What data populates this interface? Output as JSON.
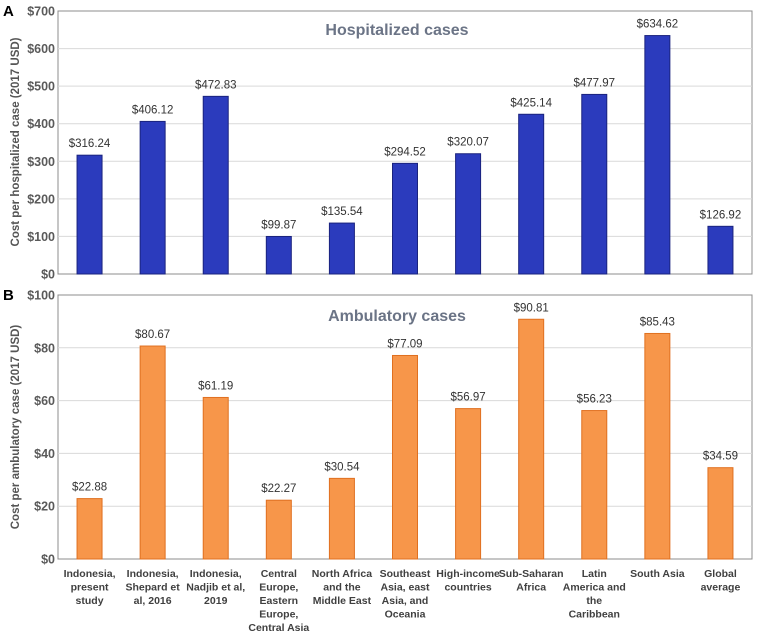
{
  "chart_data": [
    {
      "panel": "A",
      "type": "bar",
      "title": "Hospitalized cases",
      "ylabel": "Cost per hospitalized case (2017 USD)",
      "xlabel": "",
      "ylim": [
        0,
        700
      ],
      "yticks": [
        0,
        100,
        200,
        300,
        400,
        500,
        600,
        700
      ],
      "ytick_labels": [
        "$0",
        "$100",
        "$200",
        "$300",
        "$400",
        "$500",
        "$600",
        "$700"
      ],
      "categories": [
        "Indonesia, present study",
        "Indonesia, Shepard et al, 2016",
        "Indonesia, Nadjib et al, 2019",
        "Central Europe, Eastern Europe, Central Asia",
        "North Africa and the Middle East",
        "Southeast Asia, east Asia, and Oceania",
        "High-income countries",
        "Sub-Saharan Africa",
        "Latin America and the Caribbean",
        "South Asia",
        "Global average"
      ],
      "values": [
        316.24,
        406.12,
        472.83,
        99.87,
        135.54,
        294.52,
        320.07,
        425.14,
        477.97,
        634.62,
        126.92
      ],
      "value_labels": [
        "$316.24",
        "$406.12",
        "$472.83",
        "$99.87",
        "$135.54",
        "$294.52",
        "$320.07",
        "$425.14",
        "$477.97",
        "$634.62",
        "$126.92"
      ],
      "bar_color": "#2b3bbd",
      "bar_edge_color": "#1a237e",
      "grid": true,
      "legend": "none"
    },
    {
      "panel": "B",
      "type": "bar",
      "title": "Ambulatory cases",
      "ylabel": "Cost per ambulatory case (2017 USD)",
      "xlabel": "",
      "ylim": [
        0,
        100
      ],
      "yticks": [
        0,
        20,
        40,
        60,
        80,
        100
      ],
      "ytick_labels": [
        "$0",
        "$20",
        "$40",
        "$60",
        "$80",
        "$100"
      ],
      "categories": [
        "Indonesia, present study",
        "Indonesia, Shepard et al, 2016",
        "Indonesia, Nadjib et al, 2019",
        "Central Europe, Eastern Europe, Central Asia",
        "North Africa and the Middle East",
        "Southeast Asia, east Asia, and Oceania",
        "High-income countries",
        "Sub-Saharan Africa",
        "Latin America and the Caribbean",
        "South Asia",
        "Global average"
      ],
      "category_label_lines": [
        [
          "Indonesia,",
          "present",
          "study"
        ],
        [
          "Indonesia,",
          "Shepard et",
          "al, 2016"
        ],
        [
          "Indonesia,",
          "Nadjib et al,",
          "2019"
        ],
        [
          "Central",
          "Europe,",
          "Eastern",
          "Europe,",
          "Central Asia"
        ],
        [
          "North Africa",
          "and the",
          "Middle East"
        ],
        [
          "Southeast",
          "Asia, east",
          "Asia, and",
          "Oceania"
        ],
        [
          "High-income",
          "countries"
        ],
        [
          "Sub-Saharan",
          "Africa"
        ],
        [
          "Latin",
          "America and",
          "the",
          "Caribbean"
        ],
        [
          "South Asia"
        ],
        [
          "Global",
          "average"
        ]
      ],
      "values": [
        22.88,
        80.67,
        61.19,
        22.27,
        30.54,
        77.09,
        56.97,
        90.81,
        56.23,
        85.43,
        34.59
      ],
      "value_labels": [
        "$22.88",
        "$80.67",
        "$61.19",
        "$22.27",
        "$30.54",
        "$77.09",
        "$56.97",
        "$90.81",
        "$56.23",
        "$85.43",
        "$34.59"
      ],
      "bar_color": "#f7964a",
      "bar_edge_color": "#e07020",
      "grid": true,
      "legend": "none"
    }
  ]
}
